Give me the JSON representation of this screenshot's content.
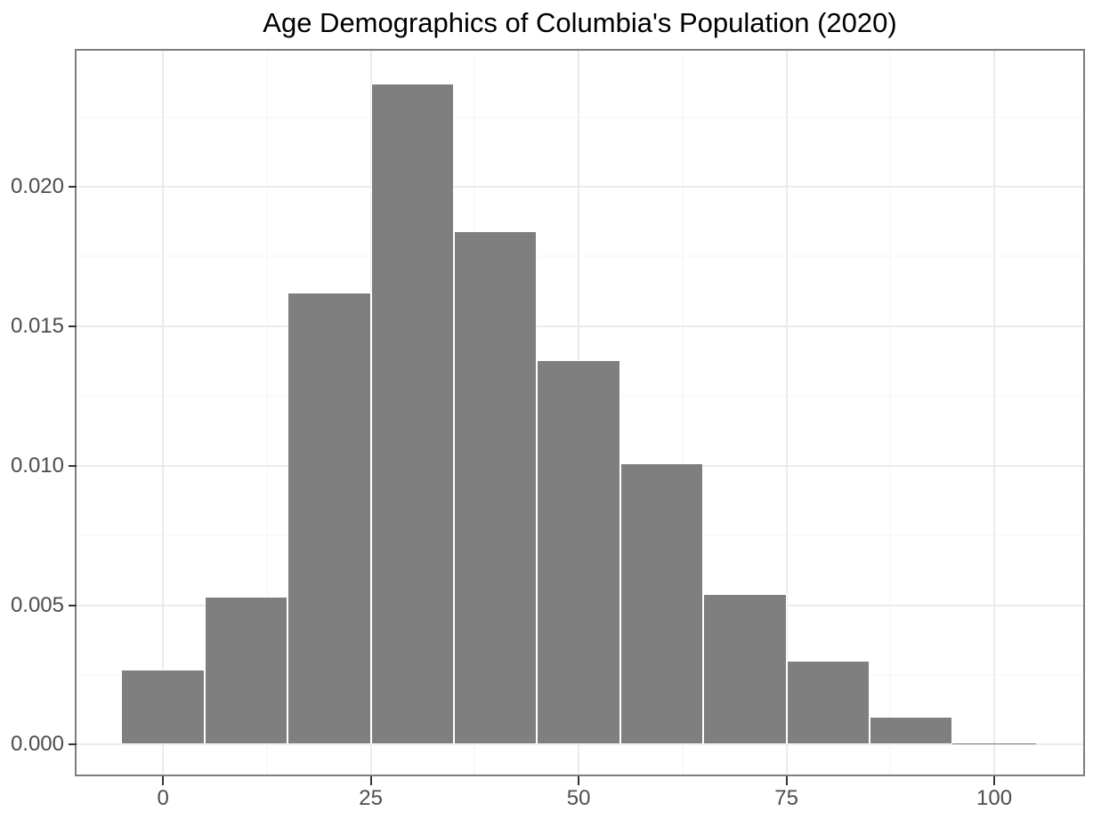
{
  "chart_data": {
    "type": "bar",
    "subtype": "histogram",
    "title": "Age Demographics of Columbia's Population (2020)",
    "xlabel": "",
    "ylabel": "",
    "legend": false,
    "grid": true,
    "x_ticks": [
      0,
      25,
      50,
      75,
      100
    ],
    "x_tick_labels": [
      "0",
      "25",
      "50",
      "75",
      "100"
    ],
    "x_minor_breaks": [
      12.5,
      37.5,
      62.5,
      87.5
    ],
    "y_ticks": [
      0,
      0.005,
      0.01,
      0.015,
      0.02
    ],
    "y_tick_labels": [
      "0.000",
      "0.005",
      "0.010",
      "0.015",
      "0.020"
    ],
    "y_minor_breaks": [
      0.0025,
      0.0075,
      0.0125,
      0.0175,
      0.0225
    ],
    "xlim": [
      -10.4,
      110.7
    ],
    "ylim": [
      -0.00107,
      0.02488
    ],
    "bin_width": 10,
    "y_unit": "density",
    "bins": [
      {
        "x0": -5,
        "x1": 5,
        "density": 0.0027
      },
      {
        "x0": 5,
        "x1": 15,
        "density": 0.0053
      },
      {
        "x0": 15,
        "x1": 25,
        "density": 0.0162
      },
      {
        "x0": 25,
        "x1": 35,
        "density": 0.0237
      },
      {
        "x0": 35,
        "x1": 45,
        "density": 0.0184
      },
      {
        "x0": 45,
        "x1": 55,
        "density": 0.0138
      },
      {
        "x0": 55,
        "x1": 65,
        "density": 0.0101
      },
      {
        "x0": 65,
        "x1": 75,
        "density": 0.0054
      },
      {
        "x0": 75,
        "x1": 85,
        "density": 0.003
      },
      {
        "x0": 85,
        "x1": 95,
        "density": 0.001
      },
      {
        "x0": 95,
        "x1": 105,
        "density": 5e-05
      }
    ]
  },
  "colors": {
    "background": "#ffffff",
    "bar_fill": "#7f7f7f",
    "bar_border": "#ffffff",
    "panel_border": "#7d7d7d",
    "grid_major": "#ebebeb",
    "grid_minor": "#f4f4f4",
    "tick_mark": "#333333",
    "axis_text": "#4d4d4d",
    "title_text": "#000000"
  }
}
